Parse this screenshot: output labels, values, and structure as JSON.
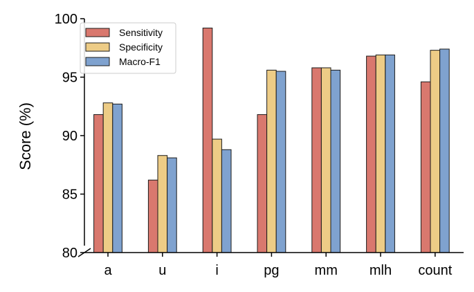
{
  "chart_data": {
    "type": "bar",
    "title": "",
    "xlabel": "",
    "ylabel": "Score (%)",
    "ylim": [
      80,
      100
    ],
    "yticks": [
      80,
      85,
      90,
      95,
      100
    ],
    "y_axis_break": true,
    "grid": false,
    "legend_position": "top-left",
    "categories": [
      "a",
      "u",
      "i",
      "pg",
      "mm",
      "mlh",
      "count"
    ],
    "series": [
      {
        "name": "Sensitivity",
        "color": "#D9786E",
        "values": [
          91.8,
          86.2,
          99.2,
          91.8,
          95.8,
          96.8,
          94.6
        ]
      },
      {
        "name": "Specificity",
        "color": "#EDCC86",
        "values": [
          92.8,
          88.3,
          89.7,
          95.6,
          95.8,
          96.9,
          97.3
        ]
      },
      {
        "name": "Macro-F1",
        "color": "#7FA2CF",
        "values": [
          92.7,
          88.1,
          88.8,
          95.5,
          95.6,
          96.9,
          97.4
        ]
      }
    ]
  }
}
